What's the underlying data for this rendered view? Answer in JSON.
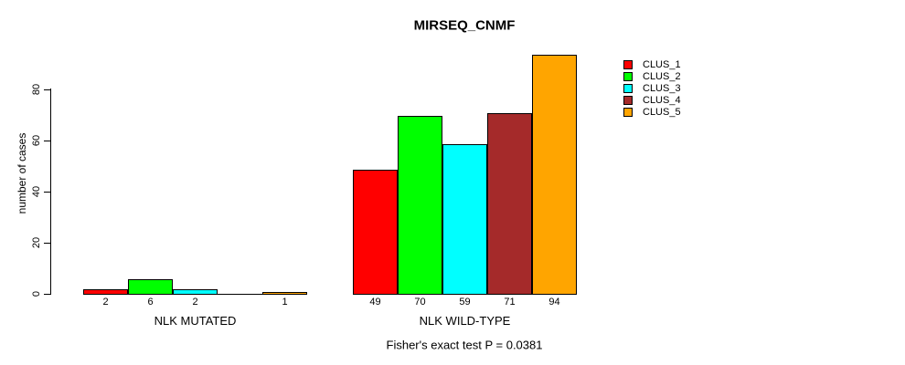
{
  "chart_data": {
    "type": "bar",
    "title": "MIRSEQ_CNMF",
    "ylabel": "number of cases",
    "yticks": [
      0,
      20,
      40,
      60,
      80
    ],
    "ylim": [
      0,
      94
    ],
    "grid": false,
    "categories": [
      "NLK MUTATED",
      "NLK WILD-TYPE"
    ],
    "series": [
      {
        "name": "CLUS_1",
        "color": "#FF0000",
        "values": [
          2,
          49
        ]
      },
      {
        "name": "CLUS_2",
        "color": "#00FF00",
        "values": [
          6,
          70
        ]
      },
      {
        "name": "CLUS_3",
        "color": "#00FFFF",
        "values": [
          2,
          59
        ]
      },
      {
        "name": "CLUS_4",
        "color": "#A52A2A",
        "values": [
          0,
          71
        ]
      },
      {
        "name": "CLUS_5",
        "color": "#FFA500",
        "values": [
          1,
          94
        ]
      }
    ],
    "bar_value_labels": [
      [
        "2",
        "6",
        "2",
        "",
        "1"
      ],
      [
        "49",
        "70",
        "59",
        "71",
        "94"
      ]
    ],
    "legend": {
      "position": "top-right-inside",
      "entries": [
        "CLUS_1",
        "CLUS_2",
        "CLUS_3",
        "CLUS_4",
        "CLUS_5"
      ]
    },
    "footnote": "Fisher's exact test P = 0.0381"
  }
}
